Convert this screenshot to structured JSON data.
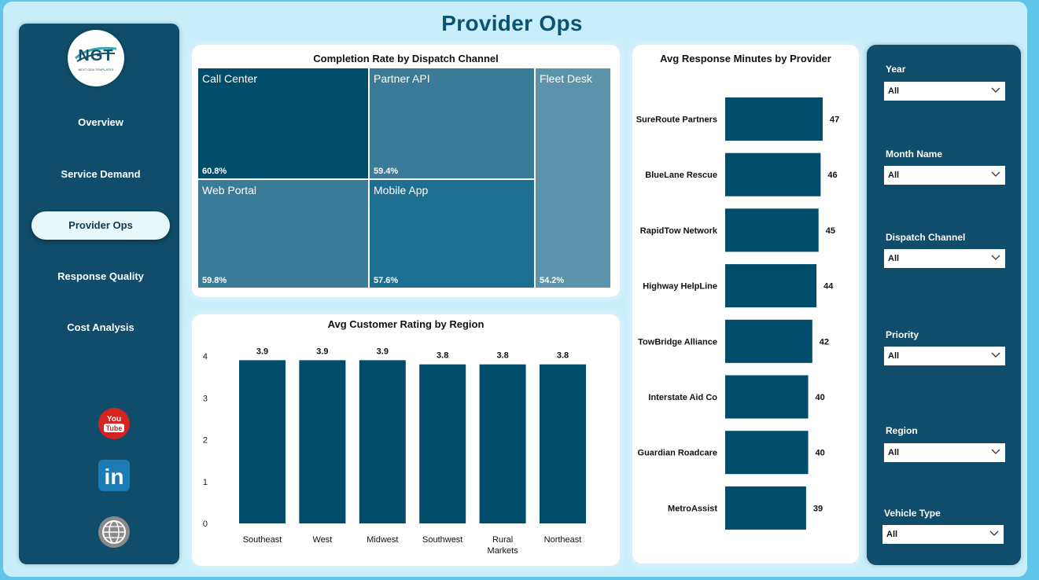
{
  "page_title": "Provider Ops",
  "logo": {
    "text": "NGT",
    "subtext": "NEXT GEN TEMPLATES"
  },
  "nav": [
    {
      "label": "Overview",
      "active": false
    },
    {
      "label": "Service Demand",
      "active": false
    },
    {
      "label": "Provider Ops",
      "active": true
    },
    {
      "label": "Response Quality",
      "active": false
    },
    {
      "label": "Cost Analysis",
      "active": false
    }
  ],
  "social_icons": [
    "youtube-icon",
    "linkedin-icon",
    "globe-icon"
  ],
  "youtube_text": [
    "You",
    "Tube"
  ],
  "linkedin_text": "in",
  "colors": {
    "dark": "#004d6b",
    "mid": "#1f6f91",
    "light": "#3d809b",
    "lighter": "#5a95ad",
    "accent_bg": "#c9eefb"
  },
  "chart_data": [
    {
      "type": "treemap",
      "title": "Completion Rate by Dispatch Channel",
      "items": [
        {
          "label": "Call Center",
          "value": "60.8%"
        },
        {
          "label": "Partner API",
          "value": "59.4%"
        },
        {
          "label": "Web Portal",
          "value": "59.8%"
        },
        {
          "label": "Mobile App",
          "value": "57.6%"
        },
        {
          "label": "Fleet Desk",
          "value": "54.2%"
        }
      ]
    },
    {
      "type": "bar",
      "title": "Avg Customer Rating by Region",
      "categories": [
        "Southeast",
        "West",
        "Midwest",
        "Southwest",
        "Rural Markets",
        "Northeast"
      ],
      "values": [
        3.9,
        3.9,
        3.9,
        3.8,
        3.8,
        3.8
      ],
      "value_labels": [
        "3.9",
        "3.9",
        "3.9",
        "3.8",
        "3.8",
        "3.8"
      ],
      "ylim": [
        0,
        4
      ],
      "yticks": [
        "0",
        "1",
        "2",
        "3",
        "4"
      ],
      "color": "#004d6b"
    },
    {
      "type": "bar",
      "orientation": "horizontal",
      "title": "Avg Response Minutes by Provider",
      "categories": [
        "SureRoute Partners",
        "BlueLane Rescue",
        "RapidTow Network",
        "Highway HelpLine",
        "TowBridge Alliance",
        "Interstate Aid Co",
        "Guardian Roadcare",
        "MetroAssist"
      ],
      "values": [
        47,
        46,
        45,
        44,
        42,
        40,
        40,
        39
      ],
      "value_labels": [
        "47",
        "46",
        "45",
        "44",
        "42",
        "40",
        "40",
        "39"
      ],
      "color": "#004d6b"
    }
  ],
  "filters": [
    {
      "label": "Year",
      "value": "All"
    },
    {
      "label": "Month Name",
      "value": "All"
    },
    {
      "label": "Dispatch Channel",
      "value": "All"
    },
    {
      "label": "Priority",
      "value": "All"
    },
    {
      "label": "Region",
      "value": "All"
    },
    {
      "label": "Vehicle Type",
      "value": "All"
    }
  ]
}
